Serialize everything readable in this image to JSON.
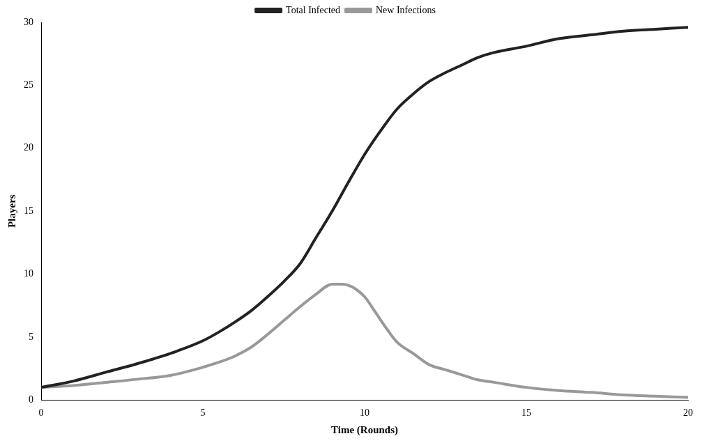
{
  "chart_data": {
    "type": "line",
    "xlabel": "Time (Rounds)",
    "ylabel": "Players",
    "xlim": [
      0,
      20
    ],
    "xticks": [
      0,
      5,
      10,
      15,
      20
    ],
    "ylim": [
      0,
      30
    ],
    "yticks": [
      0,
      5,
      10,
      15,
      20,
      25,
      30
    ],
    "grid": false,
    "legend": "top",
    "marker": "none",
    "line_style": "solid",
    "series": [
      {
        "name": "Total Infected",
        "color": "#222222",
        "x": [
          0,
          1,
          2,
          3,
          4,
          5,
          5.5,
          6,
          6.5,
          7,
          7.5,
          8,
          8.5,
          9,
          9.5,
          10,
          10.5,
          11,
          11.5,
          12,
          12.5,
          13,
          13.5,
          14,
          15,
          16,
          17,
          18,
          19,
          20
        ],
        "values": [
          1,
          1.5,
          2.2,
          2.9,
          3.7,
          4.7,
          5.4,
          6.2,
          7.1,
          8.2,
          9.4,
          10.8,
          12.9,
          15.0,
          17.3,
          19.5,
          21.4,
          23.1,
          24.3,
          25.3,
          26.0,
          26.6,
          27.2,
          27.6,
          28.1,
          28.7,
          29.0,
          29.3,
          29.45,
          29.6
        ]
      },
      {
        "name": "New Infections",
        "color": "#999999",
        "x": [
          0,
          1,
          2,
          3,
          4,
          5,
          5.5,
          6,
          6.5,
          7,
          7.5,
          8,
          8.5,
          9,
          9.3,
          9.6,
          10,
          10.3,
          10.7,
          11,
          11.5,
          12,
          12.5,
          13,
          13.5,
          14,
          15,
          16,
          17,
          18,
          19,
          20
        ],
        "values": [
          1,
          1.15,
          1.4,
          1.65,
          1.95,
          2.6,
          3.0,
          3.5,
          4.2,
          5.2,
          6.3,
          7.4,
          8.4,
          9.2,
          9.2,
          9.0,
          8.2,
          7.1,
          5.6,
          4.6,
          3.7,
          2.8,
          2.4,
          2.0,
          1.6,
          1.4,
          1.0,
          0.75,
          0.6,
          0.4,
          0.3,
          0.2
        ]
      }
    ]
  }
}
